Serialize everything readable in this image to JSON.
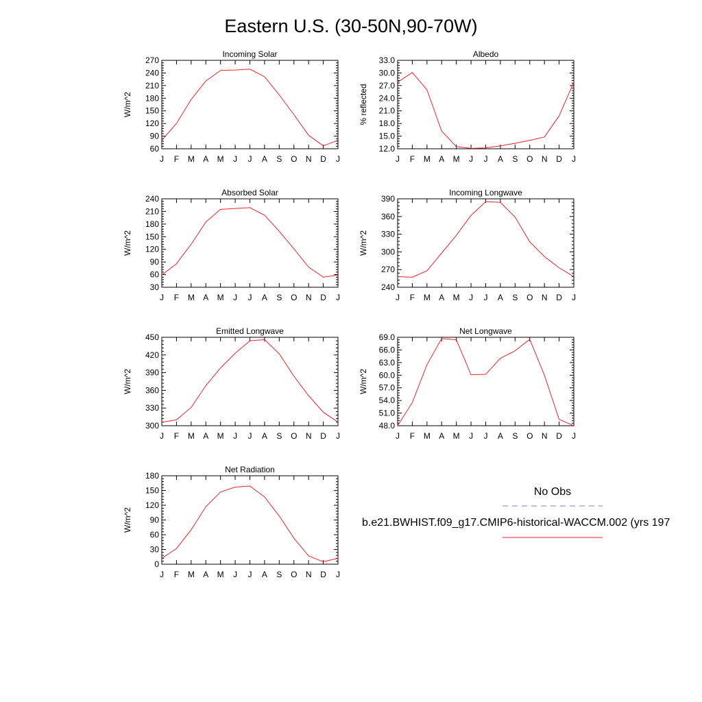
{
  "title": "Eastern U.S. (30-50N,90-70W)",
  "months": [
    "J",
    "F",
    "M",
    "A",
    "M",
    "J",
    "J",
    "A",
    "S",
    "O",
    "N",
    "D",
    "J"
  ],
  "line_color": "#e8242a",
  "obs_color": "#7a7adf",
  "legend": {
    "obs_label": "No Obs",
    "model_label": "b.e21.BWHIST.f09_g17.CMIP6-historical-WACCM.002 (yrs 197"
  },
  "chart_data": [
    {
      "type": "line",
      "title": "Incoming Solar",
      "ylabel": "W/m^2",
      "categories": [
        "J",
        "F",
        "M",
        "A",
        "M",
        "J",
        "J",
        "A",
        "S",
        "O",
        "N",
        "D",
        "J"
      ],
      "ylim": [
        60,
        270
      ],
      "yticks": [
        "60",
        "90",
        "120",
        "150",
        "180",
        "210",
        "240",
        "270"
      ],
      "values": [
        80,
        120,
        177,
        221,
        246,
        247,
        249,
        231,
        188,
        141,
        92,
        67,
        80
      ]
    },
    {
      "type": "line",
      "title": "Albedo",
      "ylabel": "% reflected",
      "categories": [
        "J",
        "F",
        "M",
        "A",
        "M",
        "J",
        "J",
        "A",
        "S",
        "O",
        "N",
        "D",
        "J"
      ],
      "ylim": [
        12.0,
        33.0
      ],
      "yticks": [
        "12.0",
        "15.0",
        "18.0",
        "21.0",
        "24.0",
        "27.0",
        "30.0",
        "33.0"
      ],
      "values": [
        27.8,
        30.1,
        26.0,
        16.2,
        12.5,
        12.1,
        12.2,
        12.7,
        13.3,
        14.0,
        14.8,
        19.8,
        27.8
      ]
    },
    {
      "type": "line",
      "title": "Absorbed Solar",
      "ylabel": "W/m^2",
      "categories": [
        "J",
        "F",
        "M",
        "A",
        "M",
        "J",
        "J",
        "A",
        "S",
        "O",
        "N",
        "D",
        "J"
      ],
      "ylim": [
        30,
        240
      ],
      "yticks": [
        "30",
        "60",
        "90",
        "120",
        "150",
        "180",
        "210",
        "240"
      ],
      "values": [
        59,
        86,
        132,
        185,
        215,
        217,
        219,
        201,
        163,
        121,
        78,
        54,
        59
      ]
    },
    {
      "type": "line",
      "title": "Incoming Longwave",
      "ylabel": "W/m^2",
      "categories": [
        "J",
        "F",
        "M",
        "A",
        "M",
        "J",
        "J",
        "A",
        "S",
        "O",
        "N",
        "D",
        "J"
      ],
      "ylim": [
        240,
        390
      ],
      "yticks": [
        "240",
        "270",
        "300",
        "330",
        "360",
        "390"
      ],
      "values": [
        258,
        257,
        268,
        298,
        328,
        362,
        385,
        384,
        359,
        317,
        292,
        273,
        258
      ]
    },
    {
      "type": "line",
      "title": "Emitted Longwave",
      "ylabel": "W/m^2",
      "categories": [
        "J",
        "F",
        "M",
        "A",
        "M",
        "J",
        "J",
        "A",
        "S",
        "O",
        "N",
        "D",
        "J"
      ],
      "ylim": [
        300,
        450
      ],
      "yticks": [
        "300",
        "330",
        "360",
        "390",
        "420",
        "450"
      ],
      "values": [
        306,
        310,
        331,
        368,
        398,
        423,
        444,
        446,
        422,
        384,
        351,
        323,
        306
      ]
    },
    {
      "type": "line",
      "title": "Net Longwave",
      "ylabel": "W/m^2",
      "categories": [
        "J",
        "F",
        "M",
        "A",
        "M",
        "J",
        "J",
        "A",
        "S",
        "O",
        "N",
        "D",
        "J"
      ],
      "ylim": [
        48.0,
        69.0
      ],
      "yticks": [
        "48.0",
        "51.0",
        "54.0",
        "57.0",
        "60.0",
        "63.0",
        "66.0",
        "69.0"
      ],
      "values": [
        48.0,
        53.5,
        62.5,
        68.7,
        68.4,
        60.1,
        60.2,
        64.0,
        65.8,
        68.5,
        60.0,
        49.5,
        48.0
      ]
    },
    {
      "type": "line",
      "title": "Net Radiation",
      "ylabel": "W/m^2",
      "categories": [
        "J",
        "F",
        "M",
        "A",
        "M",
        "J",
        "J",
        "A",
        "S",
        "O",
        "N",
        "D",
        "J"
      ],
      "ylim": [
        0,
        180
      ],
      "yticks": [
        "0",
        "30",
        "60",
        "90",
        "120",
        "150",
        "180"
      ],
      "values": [
        12,
        32,
        70,
        117,
        147,
        157,
        159,
        137,
        98,
        53,
        17,
        5,
        12
      ]
    }
  ]
}
